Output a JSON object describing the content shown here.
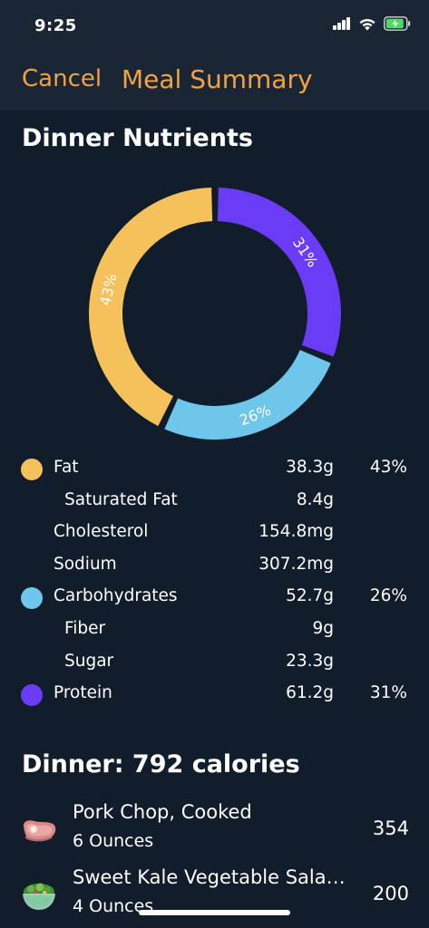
{
  "status_bar": {
    "time": "9:25"
  },
  "nav": {
    "cancel_label": "Cancel",
    "title": "Meal Summary"
  },
  "nutrients_section": {
    "title": "Dinner Nutrients"
  },
  "chart_data": {
    "type": "pie",
    "style": "donut",
    "slices": [
      {
        "label": "Fat",
        "value": 43,
        "display": "43%",
        "color": "#f4c15b"
      },
      {
        "label": "Carbohydrates",
        "value": 26,
        "display": "26%",
        "color": "#6ec6ea"
      },
      {
        "label": "Protein",
        "value": 31,
        "display": "31%",
        "color": "#6b3cf6"
      }
    ]
  },
  "nutrients": [
    {
      "name": "Fat",
      "amount": "38.3g",
      "percent": "43%",
      "color": "#f4c15b",
      "indent": false
    },
    {
      "name": "Saturated Fat",
      "amount": "8.4g",
      "percent": "",
      "color": "",
      "indent": true
    },
    {
      "name": "Cholesterol",
      "amount": "154.8mg",
      "percent": "",
      "color": "",
      "indent": false
    },
    {
      "name": "Sodium",
      "amount": "307.2mg",
      "percent": "",
      "color": "",
      "indent": false
    },
    {
      "name": "Carbohydrates",
      "amount": "52.7g",
      "percent": "26%",
      "color": "#6ec6ea",
      "indent": false
    },
    {
      "name": "Fiber",
      "amount": "9g",
      "percent": "",
      "color": "",
      "indent": true
    },
    {
      "name": "Sugar",
      "amount": "23.3g",
      "percent": "",
      "color": "",
      "indent": true
    },
    {
      "name": "Protein",
      "amount": "61.2g",
      "percent": "31%",
      "color": "#6b3cf6",
      "indent": false
    }
  ],
  "meal": {
    "title": "Dinner: 792 calories",
    "items": [
      {
        "name": "Pork Chop, Cooked",
        "quantity": "6 Ounces",
        "calories": "354",
        "icon": "pork-chop-icon"
      },
      {
        "name": "Sweet Kale Vegetable Sala…",
        "quantity": "4 Ounces",
        "calories": "200",
        "icon": "salad-bowl-icon"
      }
    ]
  },
  "colors": {
    "background": "#121d2c",
    "nav_background": "#1b2634",
    "accent": "#f0a346"
  }
}
